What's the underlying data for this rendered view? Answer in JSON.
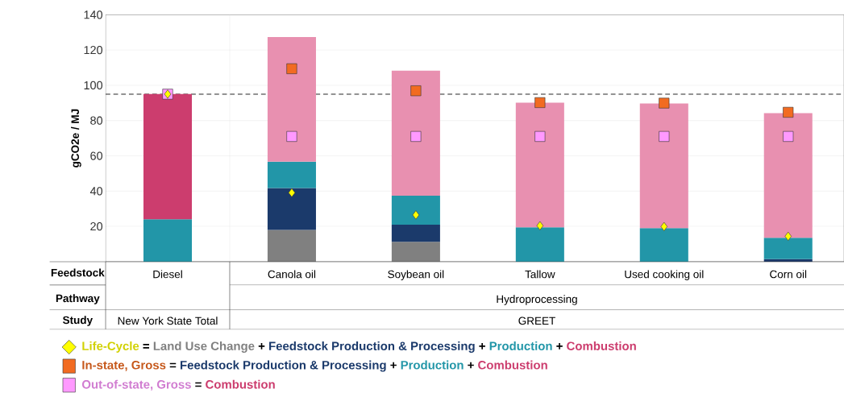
{
  "chart_data": {
    "type": "bar",
    "stacked": true,
    "ylabel": "gCO2e / MJ",
    "categories": [
      "Diesel",
      "Canola oil",
      "Soybean oil",
      "Tallow",
      "Used cooking oil",
      "Corn oil"
    ],
    "ylim": [
      0,
      140
    ],
    "yticks": [
      20,
      40,
      60,
      80,
      100,
      120,
      140
    ],
    "grid": "y",
    "legend": "bottom",
    "series": [
      {
        "name": "Land Use Change",
        "color": "#808080",
        "values": [
          0,
          18,
          11.3,
          0,
          0,
          0
        ]
      },
      {
        "name": "Feedstock Production & Processing",
        "color": "#1b3a6b",
        "values": [
          0,
          23.7,
          9.7,
          0,
          0,
          1.5
        ]
      },
      {
        "name": "Production",
        "color": "#2296a8",
        "values": [
          24,
          15,
          16.4,
          19.5,
          19,
          12.1
        ]
      },
      {
        "name": "Combustion",
        "color": "#cc3d6e",
        "colors": [
          "#cc3d6e",
          "#e890b0",
          "#e890b0",
          "#e890b0",
          "#e890b0",
          "#e890b0"
        ],
        "values": [
          71,
          70.7,
          70.9,
          70.7,
          70.7,
          70.6
        ]
      },
      {
        "name": "Life-Cycle",
        "type": "scatter",
        "marker": "diamond",
        "color": "#ffff00",
        "values": [
          95,
          39.1,
          26.5,
          20.4,
          19.9,
          14.4
        ]
      },
      {
        "name": "In-state, Gross",
        "type": "scatter",
        "marker": "square",
        "color": "#f26b21",
        "values": [
          null,
          109.4,
          96.9,
          90.2,
          89.9,
          84.7
        ]
      },
      {
        "name": "Out-of-state, Gross",
        "type": "scatter",
        "marker": "square",
        "color": "#ff99ff",
        "values": [
          95,
          71,
          71,
          71,
          71,
          71
        ]
      }
    ],
    "ref_lines": [
      {
        "axis": "y",
        "value": 95,
        "color": "#333333",
        "line_style": "dashed"
      }
    ],
    "annotations": [
      "Feedstock",
      "Pathway",
      "Hydroprocessing",
      "Study",
      "New York State Total",
      "GREET",
      "=",
      "+"
    ]
  }
}
